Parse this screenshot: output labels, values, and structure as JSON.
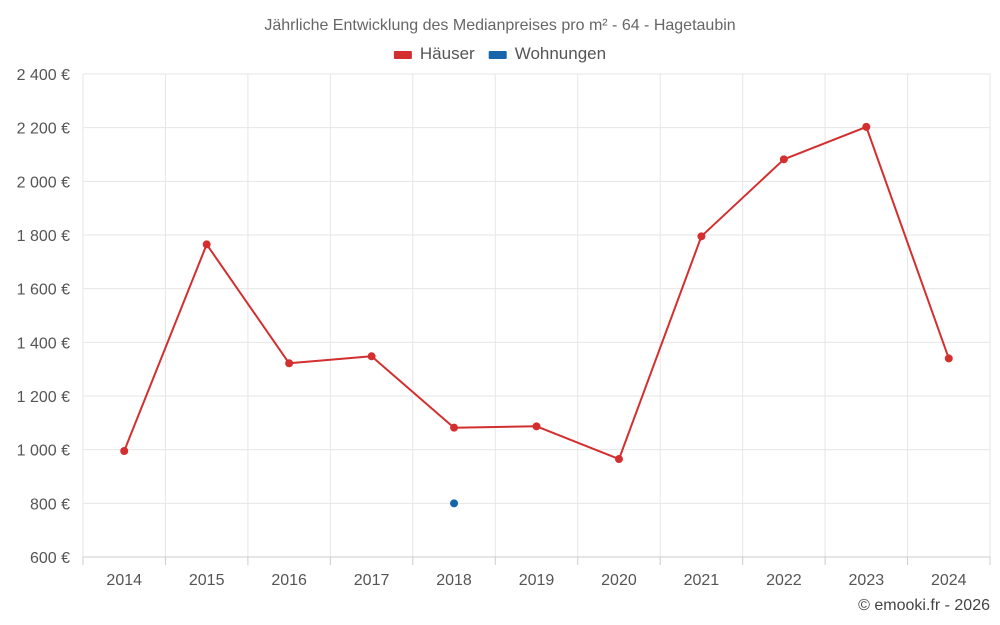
{
  "chart_data": {
    "type": "line",
    "title": "Jährliche Entwicklung des Medianpreises pro m² - 64 - Hagetaubin",
    "categories": [
      "2014",
      "2015",
      "2016",
      "2017",
      "2018",
      "2019",
      "2020",
      "2021",
      "2022",
      "2023",
      "2024"
    ],
    "series": [
      {
        "name": "Häuser",
        "color": "#d32f2f",
        "values": [
          995,
          1765,
          1322,
          1348,
          1082,
          1087,
          965,
          1795,
          2082,
          2203,
          1340
        ]
      },
      {
        "name": "Wohnungen",
        "color": "#1565a8",
        "values": [
          null,
          null,
          null,
          null,
          800,
          null,
          null,
          null,
          null,
          null,
          null
        ]
      }
    ],
    "ylim": [
      600,
      2400
    ],
    "yticks": [
      600,
      800,
      1000,
      1200,
      1400,
      1600,
      1800,
      2000,
      2200,
      2400
    ],
    "ytick_labels": [
      "600 €",
      "800 €",
      "1 000 €",
      "1 200 €",
      "1 400 €",
      "1 600 €",
      "1 800 €",
      "2 000 €",
      "2 200 €",
      "2 400 €"
    ],
    "grid": true,
    "legend_position": "top-center"
  },
  "credit": "© emooki.fr - 2026"
}
